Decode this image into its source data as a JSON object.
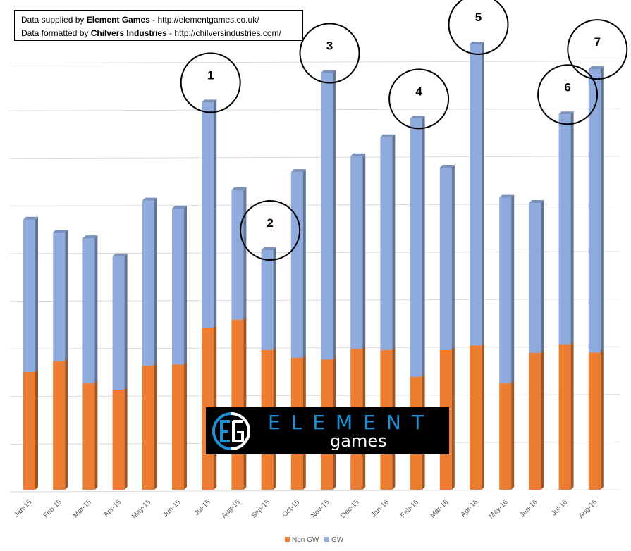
{
  "credits": {
    "line1_prefix": "Data supplied by ",
    "line1_bold": "Element Games",
    "line1_suffix": " - http://elementgames.co.uk/",
    "line2_prefix": "Data formatted by ",
    "line2_bold": "Chilvers Industries",
    "line2_suffix": " - http://chilversindustries.com/"
  },
  "logo": {
    "word": "ELEMENT",
    "sub": "games"
  },
  "chart_data": {
    "type": "bar",
    "stacked": true,
    "categories": [
      "Jan-15",
      "Feb-15",
      "Mar-15",
      "Apr-15",
      "May-15",
      "Jun-15",
      "Jul-15",
      "Aug-15",
      "Sep-15",
      "Oct-15",
      "Nov-15",
      "Dec-15",
      "Jan-16",
      "Feb-16",
      "Mar-16",
      "Apr-16",
      "May-16",
      "Jun-16",
      "Jul-16",
      "Aug-16"
    ],
    "series": [
      {
        "name": "Non GW",
        "color": "#ed7d31",
        "values": [
          2.47,
          2.7,
          2.23,
          2.1,
          2.6,
          2.63,
          3.4,
          3.57,
          2.93,
          2.77,
          2.73,
          2.95,
          2.93,
          2.37,
          2.93,
          3.03,
          2.23,
          2.87,
          3.05,
          2.88
        ]
      },
      {
        "name": "GW",
        "color": "#8faadc",
        "values": [
          3.2,
          2.7,
          3.05,
          2.8,
          3.47,
          3.27,
          4.73,
          2.72,
          2.1,
          3.9,
          6.02,
          4.05,
          4.47,
          5.42,
          3.83,
          6.32,
          3.9,
          3.15,
          4.83,
          5.95
        ]
      }
    ],
    "ylim": [
      0,
      10
    ],
    "yticks": [
      0,
      1,
      2,
      3,
      4,
      5,
      6,
      7,
      8,
      9,
      10
    ],
    "ytick_labels_shown": false,
    "grid": true,
    "legend_position": "bottom",
    "annotations": [
      {
        "label": "1",
        "category": "Jul-15"
      },
      {
        "label": "2",
        "category": "Sep-15"
      },
      {
        "label": "3",
        "category": "Nov-15"
      },
      {
        "label": "4",
        "category": "Feb-16"
      },
      {
        "label": "5",
        "category": "Apr-16"
      },
      {
        "label": "6",
        "category": "Jul-16"
      },
      {
        "label": "7",
        "category": "Aug-16"
      }
    ]
  }
}
